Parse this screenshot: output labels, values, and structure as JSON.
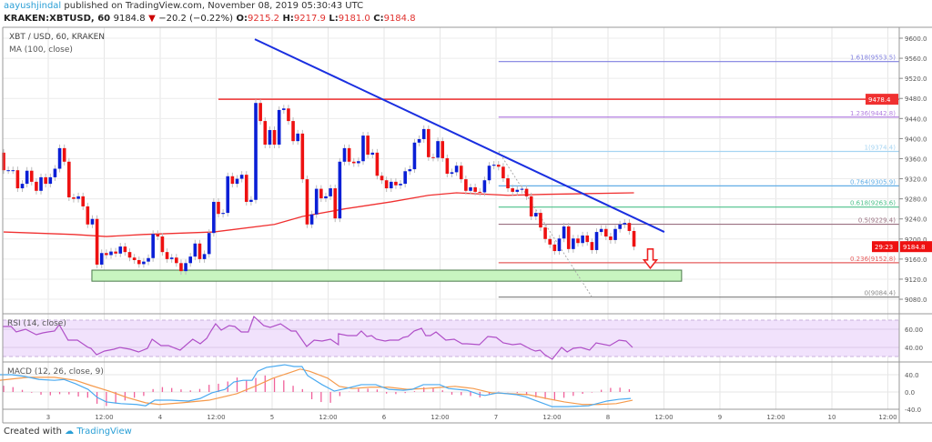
{
  "header": {
    "author": "aayushjindal",
    "published_text": "published on TradingView.com, November 08, 2019 05:30:43 UTC",
    "symbol": "KRAKEN:XBTUSD, 60",
    "last": "9184.8",
    "change": "−20.2 (−0.22%)",
    "o_label": "O:",
    "o": "9215.2",
    "h_label": "H:",
    "h": "9217.9",
    "l_label": "L:",
    "l": "9181.0",
    "c_label": "C:",
    "c": "9184.8"
  },
  "legend": {
    "main": "XBT / USD, 60, KRAKEN",
    "ma": "MA (100, close)",
    "rsi": "RSI (14, close)",
    "macd": "MACD (12, 26, close, 9)"
  },
  "colors": {
    "up": "#0a1fd6",
    "down": "#ee1111",
    "ma": "#f03030",
    "trendline": "#1a2fe0",
    "resistance": "#f03030",
    "support_zone": "#c8f5c0",
    "rsi": "#b050c8",
    "rsi_band": "#f1e2fc",
    "macd": "#4aaaf0",
    "signal": "#f59a4c",
    "histogram": "#f0609a"
  },
  "chart_data": {
    "type": "candlestick",
    "interval": "60",
    "price_axis": {
      "ticks": [
        "9080.0",
        "9120.0",
        "9160.0",
        "9200.0",
        "9240.0",
        "9280.0",
        "9320.0",
        "9360.0",
        "9400.0",
        "9440.0",
        "9480.0",
        "9520.0",
        "9560.0",
        "9600.0"
      ],
      "range": [
        9060,
        9620
      ]
    },
    "time_axis": [
      "3",
      "12:00",
      "4",
      "12:00",
      "5",
      "12:00",
      "6",
      "12:00",
      "7",
      "12:00",
      "8",
      "12:00",
      "9",
      "12:00",
      "10",
      "12:00"
    ],
    "first_open": 9372,
    "closes": [
      9337,
      9337,
      9337,
      9301,
      9310,
      9336,
      9314,
      9296,
      9323,
      9310,
      9323,
      9340,
      9381,
      9354,
      9283,
      9280,
      9285,
      9265,
      9229,
      9240,
      9149,
      9172,
      9168,
      9175,
      9171,
      9185,
      9174,
      9163,
      9158,
      9150,
      9155,
      9162,
      9210,
      9205,
      9174,
      9160,
      9163,
      9152,
      9136,
      9152,
      9165,
      9191,
      9160,
      9170,
      9212,
      9274,
      9250,
      9252,
      9325,
      9310,
      9320,
      9328,
      9274,
      9278,
      9471,
      9435,
      9388,
      9417,
      9388,
      9457,
      9460,
      9435,
      9395,
      9410,
      9319,
      9229,
      9249,
      9300,
      9281,
      9285,
      9301,
      9241,
      9354,
      9381,
      9354,
      9351,
      9355,
      9406,
      9368,
      9372,
      9326,
      9317,
      9301,
      9314,
      9307,
      9310,
      9335,
      9339,
      9392,
      9399,
      9419,
      9363,
      9362,
      9395,
      9361,
      9330,
      9333,
      9346,
      9319,
      9296,
      9303,
      9294,
      9293,
      9317,
      9346,
      9348,
      9344,
      9321,
      9301,
      9294,
      9298,
      9300,
      9285,
      9245,
      9252,
      9223,
      9200,
      9189,
      9176,
      9201,
      9225,
      9180,
      9201,
      9192,
      9207,
      9194,
      9178,
      9214,
      9220,
      9205,
      9198,
      9220,
      9229,
      9232,
      9216,
      9184.8
    ],
    "last_price_label": "9184.8",
    "countdown_label": "29:23",
    "ma100": [
      [
        0,
        9214
      ],
      [
        15,
        9209
      ],
      [
        22,
        9205
      ],
      [
        30,
        9209
      ],
      [
        45,
        9214
      ],
      [
        58,
        9229
      ],
      [
        64,
        9245
      ],
      [
        73,
        9260
      ],
      [
        83,
        9274
      ],
      [
        91,
        9287
      ],
      [
        97,
        9292
      ],
      [
        108,
        9287
      ],
      [
        116,
        9289
      ],
      [
        135,
        9292
      ]
    ],
    "trendline": {
      "from": [
        53.8,
        9598
      ],
      "to": [
        141.5,
        9214
      ]
    },
    "resistance": {
      "price": 9478.4,
      "label": "9478.4",
      "from_index": 46
    },
    "support_zone": {
      "top": 9138,
      "bottom": 9116,
      "from_index": 18.9,
      "to_index": 145.2
    },
    "fib_from_index": 106,
    "fib_levels": [
      {
        "label": "1.618(9553.5)",
        "price": 9553.5,
        "color": "#7f7fe0"
      },
      {
        "label": "1.236(9442.8)",
        "price": 9442.8,
        "color": "#b27ee0"
      },
      {
        "label": "1(9374.4)",
        "price": 9374.4,
        "color": "#a6d4f2"
      },
      {
        "label": "0.764(9305.9)",
        "price": 9305.9,
        "color": "#62aee6"
      },
      {
        "label": "0.618(9263.6)",
        "price": 9263.6,
        "color": "#4cc08a"
      },
      {
        "label": "0.5(9229.4)",
        "price": 9229.4,
        "color": "#9a7080"
      },
      {
        "label": "0.236(9152.8)",
        "price": 9152.8,
        "color": "#e65c5c"
      },
      {
        "label": "0(9084.4)",
        "price": 9084.4,
        "color": "#8a8a8a"
      }
    ],
    "fib_dashed_line": {
      "from": [
        106,
        9374.4
      ],
      "to": [
        126,
        9084.4
      ]
    },
    "arrow": {
      "direction": "down",
      "index": 138.5,
      "price": 9180
    },
    "rsi": {
      "ticks": [
        "60.00",
        "40.00"
      ],
      "band": [
        30,
        70
      ],
      "points": [
        [
          -0.2,
          63
        ],
        [
          1.6,
          63
        ],
        [
          2.7,
          57
        ],
        [
          4.7,
          60
        ],
        [
          7,
          54
        ],
        [
          8.4,
          56
        ],
        [
          9.5,
          57
        ],
        [
          10.9,
          58
        ],
        [
          11.9,
          65
        ],
        [
          13.8,
          48
        ],
        [
          15.8,
          48
        ],
        [
          18.1,
          40
        ],
        [
          18.7,
          39
        ],
        [
          19.9,
          32
        ],
        [
          21.6,
          36
        ],
        [
          23.6,
          38
        ],
        [
          24.9,
          40
        ],
        [
          27.1,
          38
        ],
        [
          28.9,
          35
        ],
        [
          30.8,
          39
        ],
        [
          31.8,
          49
        ],
        [
          33.7,
          42
        ],
        [
          35.3,
          42
        ],
        [
          37.8,
          37
        ],
        [
          40.5,
          49
        ],
        [
          42.1,
          44
        ],
        [
          43.5,
          50
        ],
        [
          44.4,
          58
        ],
        [
          45.4,
          66
        ],
        [
          46.6,
          59
        ],
        [
          48.3,
          64
        ],
        [
          49.5,
          63
        ],
        [
          50.9,
          57
        ],
        [
          52.4,
          57
        ],
        [
          53.6,
          74
        ],
        [
          55.7,
          64
        ],
        [
          57.1,
          62
        ],
        [
          59.3,
          66
        ],
        [
          61.6,
          58
        ],
        [
          62.6,
          58
        ],
        [
          64.9,
          41
        ],
        [
          66.5,
          48
        ],
        [
          68.2,
          47
        ],
        [
          70,
          49
        ],
        [
          71.7,
          43
        ],
        [
          71.7,
          55
        ],
        [
          73.7,
          53
        ],
        [
          75.6,
          53
        ],
        [
          76.6,
          58
        ],
        [
          77.8,
          52
        ],
        [
          78.8,
          53
        ],
        [
          79.8,
          49
        ],
        [
          81.7,
          47
        ],
        [
          82.7,
          48
        ],
        [
          84.6,
          48
        ],
        [
          85.6,
          51
        ],
        [
          86.6,
          52
        ],
        [
          87.9,
          58
        ],
        [
          89.5,
          61
        ],
        [
          90.4,
          53
        ],
        [
          91.4,
          53
        ],
        [
          92.6,
          57
        ],
        [
          94.7,
          48
        ],
        [
          96.5,
          49
        ],
        [
          98.2,
          44
        ],
        [
          99.2,
          44
        ],
        [
          101.9,
          43
        ],
        [
          103.7,
          52
        ],
        [
          105.5,
          51
        ],
        [
          107,
          45
        ],
        [
          109,
          43
        ],
        [
          110.7,
          44
        ],
        [
          112.9,
          38
        ],
        [
          113.9,
          36
        ],
        [
          114.9,
          37
        ],
        [
          115.9,
          32
        ],
        [
          117.5,
          27
        ],
        [
          119.5,
          40
        ],
        [
          120.7,
          35
        ],
        [
          122,
          39
        ],
        [
          123.6,
          40
        ],
        [
          125.5,
          37
        ],
        [
          126.9,
          45
        ],
        [
          129.8,
          42
        ],
        [
          131.8,
          48
        ],
        [
          133.3,
          47
        ],
        [
          134.7,
          40
        ]
      ]
    },
    "macd": {
      "ticks": [
        "40.0",
        "0.0",
        "-40.0"
      ],
      "macd_points": [
        [
          -0.8,
          40
        ],
        [
          1.8,
          40
        ],
        [
          4.5,
          36
        ],
        [
          7.6,
          29
        ],
        [
          10.9,
          27
        ],
        [
          12.9,
          29
        ],
        [
          15.4,
          19
        ],
        [
          18.1,
          6
        ],
        [
          20.1,
          -13
        ],
        [
          22,
          -23
        ],
        [
          25.1,
          -27
        ],
        [
          28.5,
          -29
        ],
        [
          30.4,
          -32
        ],
        [
          32.4,
          -19
        ],
        [
          35.7,
          -19
        ],
        [
          39.6,
          -21
        ],
        [
          42.1,
          -15
        ],
        [
          44.6,
          -2
        ],
        [
          47.4,
          6
        ],
        [
          49.3,
          23
        ],
        [
          51.3,
          27
        ],
        [
          53.2,
          27
        ],
        [
          54.4,
          48
        ],
        [
          56.3,
          57
        ],
        [
          59,
          61
        ],
        [
          60.2,
          63
        ],
        [
          62.2,
          59
        ],
        [
          63.9,
          59
        ],
        [
          65.1,
          38
        ],
        [
          68.2,
          17
        ],
        [
          70.8,
          2
        ],
        [
          73.3,
          8
        ],
        [
          76.6,
          17
        ],
        [
          79.7,
          17
        ],
        [
          82.5,
          6
        ],
        [
          85.6,
          4
        ],
        [
          87.5,
          6
        ],
        [
          89.9,
          17
        ],
        [
          93.4,
          17
        ],
        [
          95.3,
          8
        ],
        [
          99.2,
          4
        ],
        [
          101.9,
          -6
        ],
        [
          103.1,
          -8
        ],
        [
          105.9,
          -2
        ],
        [
          109.7,
          -6
        ],
        [
          111.7,
          -11
        ],
        [
          114.2,
          -21
        ],
        [
          117.5,
          -34
        ],
        [
          120.7,
          -34
        ],
        [
          125.3,
          -32
        ],
        [
          129.2,
          -21
        ],
        [
          131.8,
          -17
        ],
        [
          134.3,
          -15
        ]
      ],
      "signal_points": [
        [
          -0.8,
          27
        ],
        [
          5.1,
          34
        ],
        [
          10.9,
          34
        ],
        [
          15.4,
          27
        ],
        [
          18.7,
          15
        ],
        [
          22.6,
          2
        ],
        [
          26.5,
          -13
        ],
        [
          30.4,
          -25
        ],
        [
          33.3,
          -29
        ],
        [
          38.2,
          -25
        ],
        [
          44,
          -19
        ],
        [
          49.9,
          -4
        ],
        [
          53.8,
          13
        ],
        [
          57.7,
          32
        ],
        [
          61.6,
          46
        ],
        [
          63.5,
          53
        ],
        [
          65.5,
          48
        ],
        [
          69.4,
          32
        ],
        [
          71.9,
          13
        ],
        [
          74.7,
          8
        ],
        [
          78.6,
          11
        ],
        [
          82.5,
          11
        ],
        [
          86.4,
          6
        ],
        [
          90.3,
          8
        ],
        [
          94.2,
          11
        ],
        [
          96.7,
          13
        ],
        [
          100.6,
          8
        ],
        [
          104.5,
          -2
        ],
        [
          108.4,
          -4
        ],
        [
          112.3,
          -6
        ],
        [
          116.2,
          -15
        ],
        [
          120.1,
          -23
        ],
        [
          124,
          -29
        ],
        [
          127.3,
          -29
        ],
        [
          131.2,
          -27
        ],
        [
          134.7,
          -19
        ]
      ]
    }
  },
  "footer": {
    "created_with": "Created with",
    "brand": "TradingView"
  }
}
